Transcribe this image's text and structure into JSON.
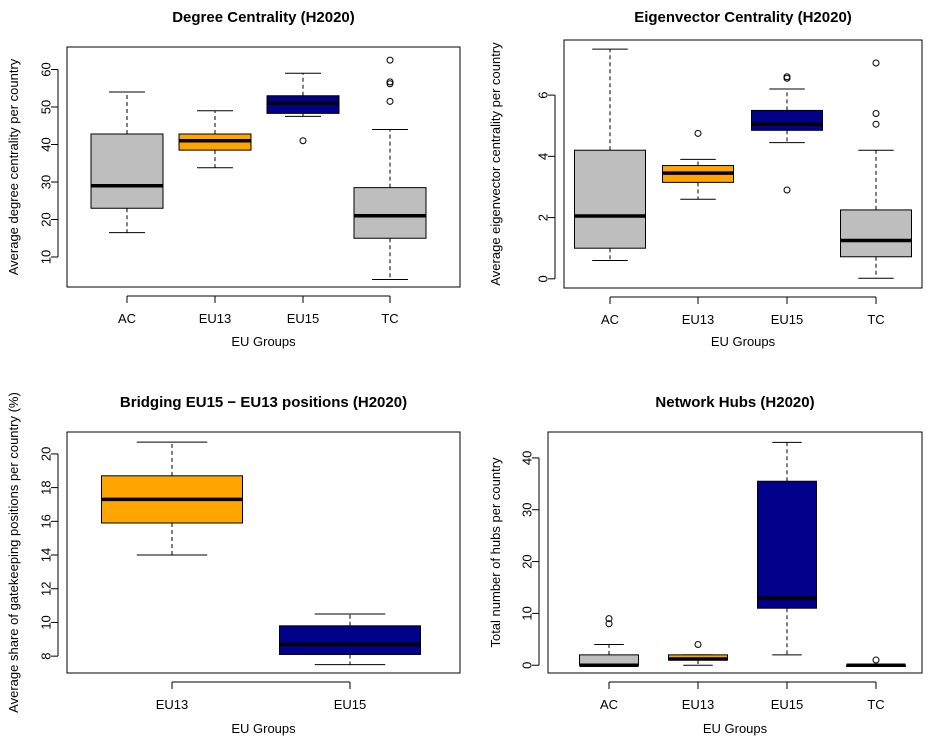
{
  "colors": {
    "AC": "#bebebe",
    "TC": "#bebebe",
    "EU13": "#ffa500",
    "EU15": "#00008b"
  },
  "chart_data": [
    {
      "type": "box",
      "title": "Degree Centrality (H2020)",
      "xlabel": "EU Groups",
      "ylabel": "Average degree centrality per country",
      "categories": [
        "AC",
        "EU13",
        "EU15",
        "TC"
      ],
      "ylim": [
        2,
        66
      ],
      "yticks": [
        10,
        20,
        30,
        40,
        50,
        60
      ],
      "boxes": [
        {
          "name": "AC",
          "whisker_low": 16.5,
          "q1": 23,
          "median": 29,
          "q3": 42.8,
          "whisker_high": 54,
          "outliers": []
        },
        {
          "name": "EU13",
          "whisker_low": 33.8,
          "q1": 38.5,
          "median": 41,
          "q3": 42.8,
          "whisker_high": 49,
          "outliers": []
        },
        {
          "name": "EU15",
          "whisker_low": 47.5,
          "q1": 48.3,
          "median": 51,
          "q3": 53,
          "whisker_high": 59,
          "outliers": [
            41
          ]
        },
        {
          "name": "TC",
          "whisker_low": 4,
          "q1": 15,
          "median": 21,
          "q3": 28.5,
          "whisker_high": 44,
          "outliers": [
            51.5,
            56.2,
            56.7,
            62.5
          ]
        }
      ]
    },
    {
      "type": "box",
      "title": "Eigenvector Centrality (H2020)",
      "xlabel": "EU Groups",
      "ylabel": "Average eigenvector centrality per country",
      "categories": [
        "AC",
        "EU13",
        "EU15",
        "TC"
      ],
      "ylim": [
        -0.3,
        7.8
      ],
      "yticks": [
        0,
        2,
        4,
        6
      ],
      "boxes": [
        {
          "name": "AC",
          "whisker_low": 0.6,
          "q1": 1.0,
          "median": 2.05,
          "q3": 4.2,
          "whisker_high": 7.5,
          "outliers": []
        },
        {
          "name": "EU13",
          "whisker_low": 2.6,
          "q1": 3.15,
          "median": 3.45,
          "q3": 3.7,
          "whisker_high": 3.9,
          "outliers": [
            4.75
          ]
        },
        {
          "name": "EU15",
          "whisker_low": 4.45,
          "q1": 4.85,
          "median": 5.05,
          "q3": 5.5,
          "whisker_high": 6.2,
          "outliers": [
            2.9,
            6.55,
            6.6
          ]
        },
        {
          "name": "TC",
          "whisker_low": 0.02,
          "q1": 0.72,
          "median": 1.25,
          "q3": 2.25,
          "whisker_high": 4.2,
          "outliers": [
            5.05,
            5.4,
            7.05
          ]
        }
      ]
    },
    {
      "type": "box",
      "title": "Bridging EU15 − EU13 positions (H2020)",
      "xlabel": "EU Groups",
      "ylabel": "Average share of gatekeeping positions per country (%)",
      "categories": [
        "EU13",
        "EU15"
      ],
      "ylim": [
        7,
        21.3
      ],
      "yticks": [
        8,
        10,
        12,
        14,
        16,
        18,
        20
      ],
      "boxes": [
        {
          "name": "EU13",
          "whisker_low": 14.0,
          "q1": 15.9,
          "median": 17.3,
          "q3": 18.7,
          "whisker_high": 20.7,
          "outliers": []
        },
        {
          "name": "EU15",
          "whisker_low": 7.5,
          "q1": 8.1,
          "median": 8.7,
          "q3": 9.8,
          "whisker_high": 10.5,
          "outliers": []
        }
      ]
    },
    {
      "type": "box",
      "title": "Network Hubs (H2020)",
      "xlabel": "EU Groups",
      "ylabel": "Total number of hubs per country",
      "categories": [
        "AC",
        "EU13",
        "EU15",
        "TC"
      ],
      "ylim": [
        -1.5,
        45
      ],
      "yticks": [
        0,
        10,
        20,
        30,
        40
      ],
      "boxes": [
        {
          "name": "AC",
          "whisker_low": 0,
          "q1": 0,
          "median": 0,
          "q3": 2,
          "whisker_high": 4,
          "outliers": [
            8,
            9
          ]
        },
        {
          "name": "EU13",
          "whisker_low": 0,
          "q1": 1,
          "median": 1.2,
          "q3": 2,
          "whisker_high": 2,
          "outliers": [
            4
          ]
        },
        {
          "name": "EU15",
          "whisker_low": 2,
          "q1": 11,
          "median": 13,
          "q3": 35.5,
          "whisker_high": 43,
          "outliers": []
        },
        {
          "name": "TC",
          "whisker_low": 0,
          "q1": 0,
          "median": 0,
          "q3": 0,
          "whisker_high": 0,
          "outliers": [
            1
          ]
        }
      ]
    }
  ]
}
